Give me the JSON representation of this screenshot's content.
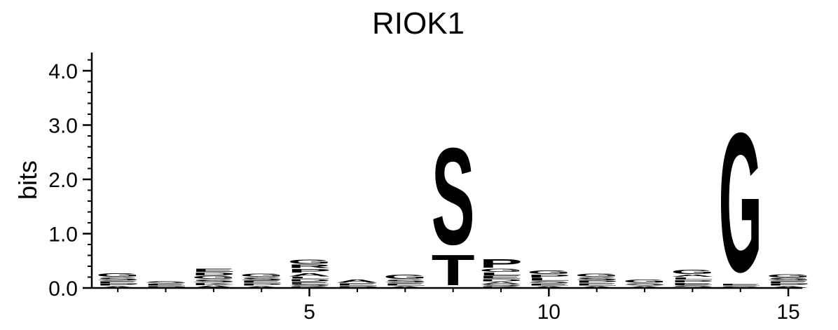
{
  "chart_data": {
    "type": "sequence_logo",
    "title": "RIOK1",
    "ylabel": "bits",
    "ylim": [
      0,
      4.3
    ],
    "y_ticks": [
      0.0,
      1.0,
      2.0,
      3.0,
      4.0
    ],
    "y_tick_labels": [
      "0.0",
      "1.0",
      "2.0",
      "3.0",
      "4.0"
    ],
    "x_ticks": [
      5,
      10,
      15
    ],
    "x_tick_labels": [
      "5",
      "10",
      "15"
    ],
    "positions": [
      1,
      2,
      3,
      4,
      5,
      6,
      7,
      8,
      9,
      10,
      11,
      12,
      13,
      14,
      15
    ],
    "colors": {
      "hydrophobic": "#000000",
      "polar": "#008000",
      "basic": "#0000ff",
      "acidic": "#ff0000"
    },
    "stacks": [
      {
        "position": 1,
        "letters": [
          {
            "letter": "A",
            "bits": 0.04,
            "color": "#000000"
          },
          {
            "letter": "P",
            "bits": 0.04,
            "color": "#000000"
          },
          {
            "letter": "E",
            "bits": 0.05,
            "color": "#ff0000"
          },
          {
            "letter": "S",
            "bits": 0.07,
            "color": "#008000"
          },
          {
            "letter": "G",
            "bits": 0.08,
            "color": "#008000"
          }
        ]
      },
      {
        "position": 2,
        "letters": [
          {
            "letter": "P",
            "bits": 0.04,
            "color": "#000000"
          },
          {
            "letter": "E",
            "bits": 0.04,
            "color": "#ff0000"
          },
          {
            "letter": "S",
            "bits": 0.05,
            "color": "#008000"
          }
        ]
      },
      {
        "position": 3,
        "letters": [
          {
            "letter": "A",
            "bits": 0.05,
            "color": "#000000"
          },
          {
            "letter": "K",
            "bits": 0.05,
            "color": "#0000ff"
          },
          {
            "letter": "S",
            "bits": 0.06,
            "color": "#008000"
          },
          {
            "letter": "G",
            "bits": 0.07,
            "color": "#008000"
          },
          {
            "letter": "D",
            "bits": 0.06,
            "color": "#ff0000"
          },
          {
            "letter": "E",
            "bits": 0.07,
            "color": "#ff0000"
          }
        ]
      },
      {
        "position": 4,
        "letters": [
          {
            "letter": "A",
            "bits": 0.04,
            "color": "#000000"
          },
          {
            "letter": "P",
            "bits": 0.05,
            "color": "#000000"
          },
          {
            "letter": "E",
            "bits": 0.05,
            "color": "#ff0000"
          },
          {
            "letter": "S",
            "bits": 0.06,
            "color": "#008000"
          },
          {
            "letter": "G",
            "bits": 0.07,
            "color": "#008000"
          }
        ]
      },
      {
        "position": 5,
        "letters": [
          {
            "letter": "K",
            "bits": 0.03,
            "color": "#0000ff"
          },
          {
            "letter": "S",
            "bits": 0.04,
            "color": "#008000"
          },
          {
            "letter": "E",
            "bits": 0.05,
            "color": "#ff0000"
          },
          {
            "letter": "D",
            "bits": 0.05,
            "color": "#ff0000"
          },
          {
            "letter": "L",
            "bits": 0.04,
            "color": "#000000"
          },
          {
            "letter": "A",
            "bits": 0.07,
            "color": "#000000"
          },
          {
            "letter": "P",
            "bits": 0.08,
            "color": "#000000"
          },
          {
            "letter": "R",
            "bits": 0.08,
            "color": "#0000ff"
          },
          {
            "letter": "G",
            "bits": 0.09,
            "color": "#008000"
          }
        ]
      },
      {
        "position": 6,
        "letters": [
          {
            "letter": "P",
            "bits": 0.04,
            "color": "#000000"
          },
          {
            "letter": "E",
            "bits": 0.05,
            "color": "#ff0000"
          },
          {
            "letter": "A",
            "bits": 0.07,
            "color": "#000000"
          }
        ]
      },
      {
        "position": 7,
        "letters": [
          {
            "letter": "A",
            "bits": 0.04,
            "color": "#000000"
          },
          {
            "letter": "E",
            "bits": 0.05,
            "color": "#ff0000"
          },
          {
            "letter": "S",
            "bits": 0.07,
            "color": "#008000"
          },
          {
            "letter": "G",
            "bits": 0.09,
            "color": "#008000"
          }
        ]
      },
      {
        "position": 8,
        "letters": [
          {
            "letter": "T",
            "bits": 0.65,
            "color": "#008000"
          },
          {
            "letter": "S",
            "bits": 2.05,
            "color": "#008000"
          }
        ]
      },
      {
        "position": 9,
        "letters": [
          {
            "letter": "K",
            "bits": 0.03,
            "color": "#0000ff"
          },
          {
            "letter": "S",
            "bits": 0.04,
            "color": "#008000"
          },
          {
            "letter": "A",
            "bits": 0.05,
            "color": "#000000"
          },
          {
            "letter": "D",
            "bits": 0.05,
            "color": "#ff0000"
          },
          {
            "letter": "E",
            "bits": 0.06,
            "color": "#ff0000"
          },
          {
            "letter": "L",
            "bits": 0.06,
            "color": "#000000"
          },
          {
            "letter": "G",
            "bits": 0.07,
            "color": "#008000"
          },
          {
            "letter": "P",
            "bits": 0.18,
            "color": "#000000"
          }
        ]
      },
      {
        "position": 10,
        "letters": [
          {
            "letter": "A",
            "bits": 0.04,
            "color": "#000000"
          },
          {
            "letter": "E",
            "bits": 0.04,
            "color": "#ff0000"
          },
          {
            "letter": "S",
            "bits": 0.05,
            "color": "#008000"
          },
          {
            "letter": "L",
            "bits": 0.06,
            "color": "#000000"
          },
          {
            "letter": "P",
            "bits": 0.06,
            "color": "#000000"
          },
          {
            "letter": "G",
            "bits": 0.08,
            "color": "#008000"
          }
        ]
      },
      {
        "position": 11,
        "letters": [
          {
            "letter": "A",
            "bits": 0.04,
            "color": "#000000"
          },
          {
            "letter": "E",
            "bits": 0.05,
            "color": "#ff0000"
          },
          {
            "letter": "P",
            "bits": 0.05,
            "color": "#000000"
          },
          {
            "letter": "S",
            "bits": 0.06,
            "color": "#008000"
          },
          {
            "letter": "G",
            "bits": 0.07,
            "color": "#008000"
          }
        ]
      },
      {
        "position": 12,
        "letters": [
          {
            "letter": "A",
            "bits": 0.04,
            "color": "#000000"
          },
          {
            "letter": "S",
            "bits": 0.05,
            "color": "#008000"
          },
          {
            "letter": "G",
            "bits": 0.07,
            "color": "#008000"
          }
        ]
      },
      {
        "position": 13,
        "letters": [
          {
            "letter": "S",
            "bits": 0.05,
            "color": "#008000"
          },
          {
            "letter": "E",
            "bits": 0.05,
            "color": "#ff0000"
          },
          {
            "letter": "P",
            "bits": 0.05,
            "color": "#000000"
          },
          {
            "letter": "L",
            "bits": 0.05,
            "color": "#000000"
          },
          {
            "letter": "A",
            "bits": 0.05,
            "color": "#000000"
          },
          {
            "letter": "G",
            "bits": 0.09,
            "color": "#008000"
          }
        ]
      },
      {
        "position": 14,
        "letters": [
          {
            "letter": "S",
            "bits": 0.04,
            "color": "#008000"
          },
          {
            "letter": "E",
            "bits": 0.04,
            "color": "#ff0000"
          },
          {
            "letter": "G",
            "bits": 2.95,
            "color": "#008000"
          }
        ]
      },
      {
        "position": 15,
        "letters": [
          {
            "letter": "A",
            "bits": 0.04,
            "color": "#000000"
          },
          {
            "letter": "P",
            "bits": 0.04,
            "color": "#000000"
          },
          {
            "letter": "E",
            "bits": 0.05,
            "color": "#ff0000"
          },
          {
            "letter": "S",
            "bits": 0.06,
            "color": "#008000"
          },
          {
            "letter": "G",
            "bits": 0.07,
            "color": "#008000"
          }
        ]
      }
    ]
  }
}
